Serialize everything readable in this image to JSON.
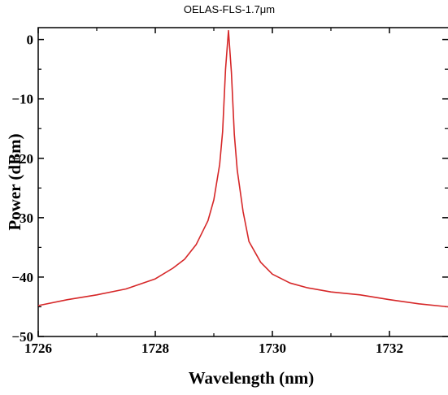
{
  "chart_data": {
    "type": "line",
    "title": "OELAS-FLS-1.7μm",
    "xlabel": "Wavelength (nm)",
    "ylabel": "Power (dBm)",
    "xlim": [
      1726,
      1733
    ],
    "ylim": [
      -50,
      2
    ],
    "x_ticks": [
      1726,
      1728,
      1730,
      1732
    ],
    "y_ticks": [
      0,
      -10,
      -20,
      -30,
      -40,
      -50
    ],
    "x_tick_labels": [
      "1726",
      "1728",
      "1730",
      "1732"
    ],
    "y_tick_labels": [
      "0",
      "−10",
      "−20",
      "−30",
      "−40",
      "−50"
    ],
    "grid": false,
    "series": [
      {
        "color": "#d62728",
        "x": [
          1726.0,
          1726.5,
          1727.0,
          1727.5,
          1728.0,
          1728.3,
          1728.5,
          1728.7,
          1728.9,
          1729.0,
          1729.1,
          1729.15,
          1729.2,
          1729.25,
          1729.3,
          1729.35,
          1729.4,
          1729.5,
          1729.6,
          1729.8,
          1730.0,
          1730.3,
          1730.6,
          1731.0,
          1731.5,
          1732.0,
          1732.5,
          1733.0
        ],
        "y": [
          -44.8,
          -43.8,
          -43.0,
          -42.0,
          -40.3,
          -38.5,
          -37.0,
          -34.5,
          -30.5,
          -27.0,
          -21.0,
          -15.5,
          -5.0,
          1.5,
          -5.5,
          -16.0,
          -22.0,
          -29.0,
          -34.0,
          -37.5,
          -39.5,
          -41.0,
          -41.8,
          -42.5,
          -43.0,
          -43.8,
          -44.5,
          -45.0
        ]
      }
    ]
  }
}
